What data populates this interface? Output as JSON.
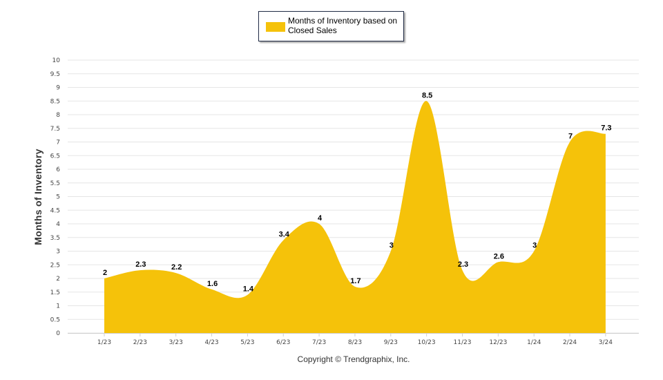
{
  "legend": {
    "label": "Months of Inventory based on Closed Sales"
  },
  "footer": {
    "copyright": "Copyright © Trendgraphix, Inc."
  },
  "colors": {
    "series": "#f5c20a",
    "grid": "#e5e5e5",
    "axis": "#cfcfcf"
  },
  "chart_data": {
    "type": "area",
    "ylabel": "Months of Inventory",
    "xlabel": "",
    "ylim": [
      0,
      10
    ],
    "yticks": [
      "0",
      "0.5",
      "1",
      "1.5",
      "2",
      "2.5",
      "3",
      "3.5",
      "4",
      "4.5",
      "5",
      "5.5",
      "6",
      "6.5",
      "7",
      "7.5",
      "8",
      "8.5",
      "9",
      "9.5",
      "10"
    ],
    "categories": [
      "1/23",
      "2/23",
      "3/23",
      "4/23",
      "5/23",
      "6/23",
      "7/23",
      "8/23",
      "9/23",
      "10/23",
      "11/23",
      "12/23",
      "1/24",
      "2/24",
      "3/24"
    ],
    "series": [
      {
        "name": "Months of Inventory based on Closed Sales",
        "values": [
          2,
          2.3,
          2.2,
          1.6,
          1.4,
          3.4,
          4,
          1.7,
          3,
          8.5,
          2.3,
          2.6,
          3,
          7,
          7.3
        ],
        "labels": [
          "2",
          "2.3",
          "2.2",
          "1.6",
          "1.4",
          "3.4",
          "4",
          "1.7",
          "3",
          "8.5",
          "2.3",
          "2.6",
          "3",
          "7",
          "7.3"
        ]
      }
    ],
    "grid": true,
    "legend_position": "top-center"
  }
}
